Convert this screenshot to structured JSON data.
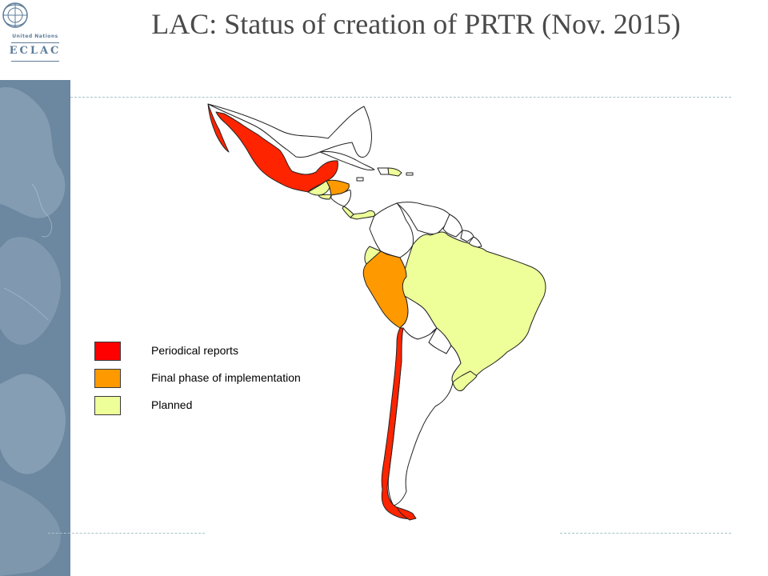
{
  "slide": {
    "title": "LAC: Status of creation of PRTR (Nov. 2015)"
  },
  "logo": {
    "organization": "United Nations",
    "acronym": "ECLAC"
  },
  "legend": [
    {
      "label": "Periodical reports",
      "color": "#ff0000"
    },
    {
      "label": "Final phase of implementation",
      "color": "#ff9900"
    },
    {
      "label": "Planned",
      "color": "#eeff99"
    }
  ],
  "map": {
    "region": "Latin America and the Caribbean",
    "countries": [
      {
        "name": "Mexico",
        "status": "Periodical reports"
      },
      {
        "name": "Chile",
        "status": "Periodical reports"
      },
      {
        "name": "Honduras",
        "status": "Final phase of implementation"
      },
      {
        "name": "Peru",
        "status": "Final phase of implementation"
      },
      {
        "name": "Guatemala",
        "status": "Planned"
      },
      {
        "name": "El Salvador",
        "status": "Planned"
      },
      {
        "name": "Costa Rica",
        "status": "Planned"
      },
      {
        "name": "Panama",
        "status": "Planned"
      },
      {
        "name": "Dominican Republic",
        "status": "Planned"
      },
      {
        "name": "Ecuador",
        "status": "Planned"
      },
      {
        "name": "Brazil",
        "status": "Planned"
      },
      {
        "name": "Uruguay",
        "status": "Planned"
      }
    ]
  }
}
